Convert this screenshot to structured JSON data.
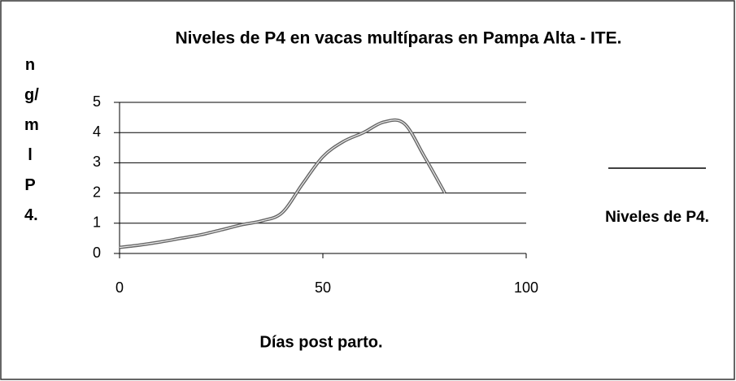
{
  "chart_data": {
    "type": "line",
    "title": "Niveles de P4 en vacas multíparas en Pampa Alta - ITE.",
    "x_label": "Días post parto.",
    "y_label": "ng/ml P4.",
    "x": [
      0,
      5,
      10,
      15,
      20,
      25,
      30,
      35,
      40,
      45,
      50,
      55,
      60,
      65,
      70,
      75,
      80
    ],
    "series": [
      {
        "name": "Niveles de P4.",
        "color": "#666666",
        "values": [
          0.2,
          0.28,
          0.38,
          0.5,
          0.62,
          0.78,
          0.95,
          1.08,
          1.35,
          2.3,
          3.2,
          3.7,
          4.0,
          4.35,
          4.3,
          3.2,
          2.0
        ]
      }
    ],
    "xlim": [
      0,
      100
    ],
    "xticks": [
      0,
      50,
      100
    ],
    "ylim": [
      0,
      5
    ],
    "yticks": [
      0,
      1,
      2,
      3,
      4,
      5
    ],
    "grid": true
  }
}
